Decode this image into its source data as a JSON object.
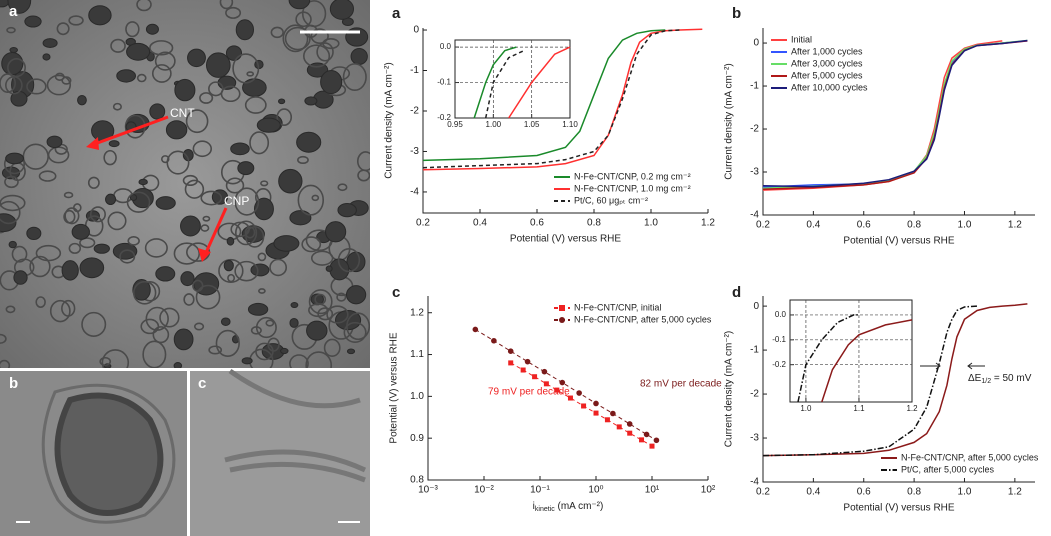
{
  "micrographs": {
    "a": {
      "panel_label": "a",
      "annotations": [
        "CNT",
        "CNP"
      ]
    },
    "b": {
      "panel_label": "b"
    },
    "c": {
      "panel_label": "c"
    }
  },
  "chart_data": [
    {
      "type": "line",
      "panel_label": "a",
      "x_label": "Potential (V) versus RHE",
      "y_label": "Current density (mA cm⁻²)",
      "xlim": [
        0.2,
        1.2
      ],
      "ylim": [
        -4.52,
        0.05
      ],
      "xticks": [
        0.2,
        0.4,
        0.6,
        0.8,
        {
          "value": 1,
          "label": "1.0"
        },
        1.2
      ],
      "yticks": [
        0,
        -1,
        -2,
        -3,
        -4
      ],
      "legend": "bottom-right",
      "series": [
        {
          "name": "N-Fe-CNT/CNP, 0.2 mg cm⁻²",
          "color": "#1a8a2a",
          "line_style": "solid",
          "x": [
            0.2,
            0.4,
            0.6,
            0.7,
            0.75,
            0.8,
            0.85,
            0.9,
            0.95,
            1.0,
            1.05
          ],
          "values": [
            -3.22,
            -3.18,
            -3.1,
            -2.9,
            -2.5,
            -1.6,
            -0.7,
            -0.25,
            -0.08,
            -0.02,
            0
          ]
        },
        {
          "name": "N-Fe-CNT/CNP, 1.0 mg cm⁻²",
          "color": "#ff3030",
          "line_style": "solid",
          "x": [
            0.2,
            0.4,
            0.6,
            0.7,
            0.8,
            0.85,
            0.9,
            0.93,
            0.96,
            1.0,
            1.05,
            1.1,
            1.18
          ],
          "values": [
            -3.45,
            -3.42,
            -3.38,
            -3.3,
            -3.1,
            -2.6,
            -1.6,
            -0.8,
            -0.3,
            -0.08,
            -0.02,
            0,
            0.02
          ]
        },
        {
          "name": "Pt/C, 60 μgₚₜ cm⁻²",
          "color": "#222222",
          "line_style": "dashed",
          "x": [
            0.2,
            0.4,
            0.6,
            0.7,
            0.8,
            0.85,
            0.9,
            0.95,
            1.0,
            1.05,
            1.1
          ],
          "values": [
            -3.4,
            -3.35,
            -3.3,
            -3.2,
            -3.0,
            -2.6,
            -1.7,
            -0.6,
            -0.12,
            -0.02,
            0
          ]
        }
      ],
      "inset": {
        "xlim": [
          0.95,
          1.1
        ],
        "ylim": [
          -0.2,
          0.02
        ],
        "xticks": [
          0.95,
          {
            "value": 1,
            "label": "1.00"
          },
          1.05,
          {
            "value": 1.1,
            "label": "1.10"
          }
        ],
        "yticks": [
          {
            "value": 0,
            "label": "0.0"
          },
          -0.1,
          -0.2
        ],
        "grid": true,
        "series": [
          {
            "color": "#1a8a2a",
            "line_style": "solid",
            "x": [
              0.975,
              0.99,
              1.0,
              1.015,
              1.03
            ],
            "values": [
              -0.2,
              -0.1,
              -0.05,
              -0.01,
              0
            ]
          },
          {
            "color": "#222222",
            "line_style": "dashed",
            "x": [
              0.99,
              1.0,
              1.02,
              1.04
            ],
            "values": [
              -0.2,
              -0.1,
              -0.03,
              -0.01
            ]
          },
          {
            "color": "#ff3030",
            "line_style": "solid",
            "x": [
              1.02,
              1.05,
              1.08,
              1.1
            ],
            "values": [
              -0.2,
              -0.1,
              -0.02,
              0
            ]
          }
        ]
      }
    },
    {
      "type": "line",
      "panel_label": "b",
      "x_label": "Potential (V) versus RHE",
      "y_label": "Current density (mA cm⁻²)",
      "xlim": [
        0.2,
        1.28
      ],
      "ylim": [
        -4,
        0.35
      ],
      "xticks": [
        0.2,
        0.4,
        0.6,
        0.8,
        {
          "value": 1,
          "label": "1.0"
        },
        1.2
      ],
      "yticks": [
        0,
        -1,
        -2,
        -3,
        -4
      ],
      "legend": "top-left",
      "series": [
        {
          "name": "Initial",
          "color": "#ff4040",
          "line_style": "solid",
          "x": [
            0.2,
            0.4,
            0.6,
            0.7,
            0.8,
            0.85,
            0.88,
            0.9,
            0.92,
            0.95,
            1.0,
            1.05,
            1.15
          ],
          "values": [
            -3.42,
            -3.38,
            -3.3,
            -3.22,
            -3.0,
            -2.6,
            -2.0,
            -1.4,
            -0.8,
            -0.35,
            -0.12,
            -0.03,
            0.05
          ]
        },
        {
          "name": "After 1,000 cycles",
          "color": "#3355ff",
          "line_style": "solid",
          "x": [
            0.2,
            0.4,
            0.6,
            0.7,
            0.8,
            0.85,
            0.88,
            0.9,
            0.92,
            0.95,
            1.0,
            1.05,
            1.15,
            1.25
          ],
          "values": [
            -3.35,
            -3.3,
            -3.28,
            -3.2,
            -3.0,
            -2.65,
            -2.15,
            -1.6,
            -1.0,
            -0.45,
            -0.15,
            -0.05,
            0,
            0.05
          ]
        },
        {
          "name": "After 3,000 cycles",
          "color": "#66dd66",
          "line_style": "solid",
          "x": [
            0.2,
            0.4,
            0.6,
            0.7,
            0.8,
            0.85,
            0.88,
            0.9,
            0.92,
            0.95,
            1.0,
            1.05,
            1.15,
            1.25
          ],
          "values": [
            -3.38,
            -3.33,
            -3.27,
            -3.2,
            -2.98,
            -2.62,
            -2.1,
            -1.55,
            -0.95,
            -0.42,
            -0.14,
            -0.05,
            0,
            0.06
          ]
        },
        {
          "name": "After 5,000 cycles",
          "color": "#b01818",
          "line_style": "solid",
          "x": [
            0.2,
            0.4,
            0.6,
            0.7,
            0.8,
            0.85,
            0.88,
            0.9,
            0.92,
            0.95,
            1.0,
            1.05,
            1.15,
            1.25
          ],
          "values": [
            -3.4,
            -3.36,
            -3.3,
            -3.22,
            -3.02,
            -2.68,
            -2.2,
            -1.65,
            -1.05,
            -0.5,
            -0.17,
            -0.06,
            -0.01,
            0.05
          ]
        },
        {
          "name": "After 10,000 cycles",
          "color": "#1c1c7a",
          "line_style": "solid",
          "x": [
            0.2,
            0.4,
            0.6,
            0.7,
            0.8,
            0.85,
            0.88,
            0.9,
            0.92,
            0.95,
            1.0,
            1.05,
            1.15,
            1.25
          ],
          "values": [
            -3.32,
            -3.34,
            -3.26,
            -3.18,
            -2.98,
            -2.7,
            -2.25,
            -1.7,
            -1.1,
            -0.52,
            -0.18,
            -0.06,
            -0.01,
            0.06
          ]
        }
      ]
    },
    {
      "type": "scatter",
      "panel_label": "c",
      "x_label": [
        "i",
        "kinetic",
        " (mA cm⁻²)"
      ],
      "y_label": "Potential (V) versus RHE",
      "x_log": true,
      "xlim": [
        0.001,
        100
      ],
      "ylim": [
        0.8,
        1.24
      ],
      "xticks": [
        {
          "value": 0.001,
          "label": "10⁻³"
        },
        {
          "value": 0.01,
          "label": "10⁻²"
        },
        {
          "value": 0.1,
          "label": "10⁻¹"
        },
        {
          "value": 1,
          "label": "10⁰"
        },
        {
          "value": 10,
          "label": "10¹"
        },
        {
          "value": 100,
          "label": "10²"
        }
      ],
      "yticks": [
        0.8,
        0.9,
        {
          "value": 1,
          "label": "1.0"
        },
        1.1,
        1.2
      ],
      "legend": "top-right",
      "annotations": [
        {
          "text": "79 mV per decade",
          "color": "#ee2222"
        },
        {
          "text": "82 mV per decade",
          "color": "#7a1a1a"
        }
      ],
      "series": [
        {
          "name": "N-Fe-CNT/CNP, initial",
          "color": "#ee2222",
          "marker": "square",
          "line_style": "dashed",
          "x": [
            0.03,
            0.05,
            0.08,
            0.13,
            0.2,
            0.35,
            0.6,
            1,
            1.6,
            2.6,
            4,
            6.5,
            10
          ],
          "values": [
            1.08,
            1.063,
            1.047,
            1.03,
            1.015,
            0.996,
            0.977,
            0.96,
            0.944,
            0.927,
            0.912,
            0.896,
            0.881
          ]
        },
        {
          "name": "N-Fe-CNT/CNP, after 5,000 cycles",
          "color": "#7a1a1a",
          "marker": "circle",
          "line_style": "dashed",
          "x": [
            0.007,
            0.015,
            0.03,
            0.06,
            0.12,
            0.25,
            0.5,
            1,
            2,
            4,
            8,
            12
          ],
          "values": [
            1.16,
            1.133,
            1.108,
            1.083,
            1.059,
            1.033,
            1.008,
            0.983,
            0.959,
            0.934,
            0.909,
            0.895
          ]
        }
      ]
    },
    {
      "type": "line",
      "panel_label": "d",
      "x_label": "Potential (V) versus RHE",
      "y_label": "Current density (mA cm⁻²)",
      "xlim": [
        0.2,
        1.28
      ],
      "ylim": [
        -4,
        0.23
      ],
      "xticks": [
        0.2,
        0.4,
        0.6,
        0.8,
        {
          "value": 1,
          "label": "1.0"
        },
        1.2
      ],
      "yticks": [
        0,
        -1,
        -2,
        -3,
        -4
      ],
      "legend": "bottom-right",
      "annotations": [
        {
          "text": [
            "ΔE",
            "1/2",
            " = 50 mV"
          ],
          "color": "#222222"
        }
      ],
      "series": [
        {
          "name": "N-Fe-CNT/CNP, after 5,000 cycles",
          "color": "#8b1a1a",
          "line_style": "solid",
          "x": [
            0.2,
            0.4,
            0.6,
            0.7,
            0.8,
            0.85,
            0.9,
            0.93,
            0.95,
            0.97,
            1.0,
            1.05,
            1.1,
            1.15,
            1.2,
            1.25
          ],
          "values": [
            -3.4,
            -3.38,
            -3.35,
            -3.28,
            -3.1,
            -2.9,
            -2.4,
            -1.8,
            -1.2,
            -0.7,
            -0.3,
            -0.1,
            -0.03,
            0,
            0.02,
            0.05
          ]
        },
        {
          "name": "Pt/C, after 5,000 cycles",
          "color": "#111111",
          "line_style": "dashdot",
          "x": [
            0.2,
            0.4,
            0.6,
            0.7,
            0.8,
            0.85,
            0.9,
            0.93,
            0.95,
            0.97,
            1.0,
            1.05
          ],
          "values": [
            -3.4,
            -3.38,
            -3.3,
            -3.2,
            -2.8,
            -2.3,
            -1.3,
            -0.6,
            -0.3,
            -0.1,
            -0.02,
            0
          ]
        }
      ],
      "inset": {
        "xlim": [
          0.97,
          1.2
        ],
        "ylim": [
          -0.35,
          0.06
        ],
        "xticks": [
          {
            "value": 1,
            "label": "1.0"
          },
          1.1,
          1.2
        ],
        "yticks": [
          {
            "value": 0,
            "label": "0.0"
          },
          -0.1,
          -0.2
        ],
        "grid": true,
        "series": [
          {
            "color": "#8b1a1a",
            "line_style": "solid",
            "x": [
              1.03,
              1.05,
              1.08,
              1.1,
              1.15,
              1.2
            ],
            "values": [
              -0.35,
              -0.22,
              -0.12,
              -0.08,
              -0.04,
              -0.02
            ]
          },
          {
            "color": "#111111",
            "line_style": "dashdot",
            "x": [
              0.985,
              1.0,
              1.03,
              1.06,
              1.09,
              1.1
            ],
            "values": [
              -0.35,
              -0.2,
              -0.1,
              -0.03,
              0,
              0
            ]
          }
        ]
      }
    }
  ]
}
